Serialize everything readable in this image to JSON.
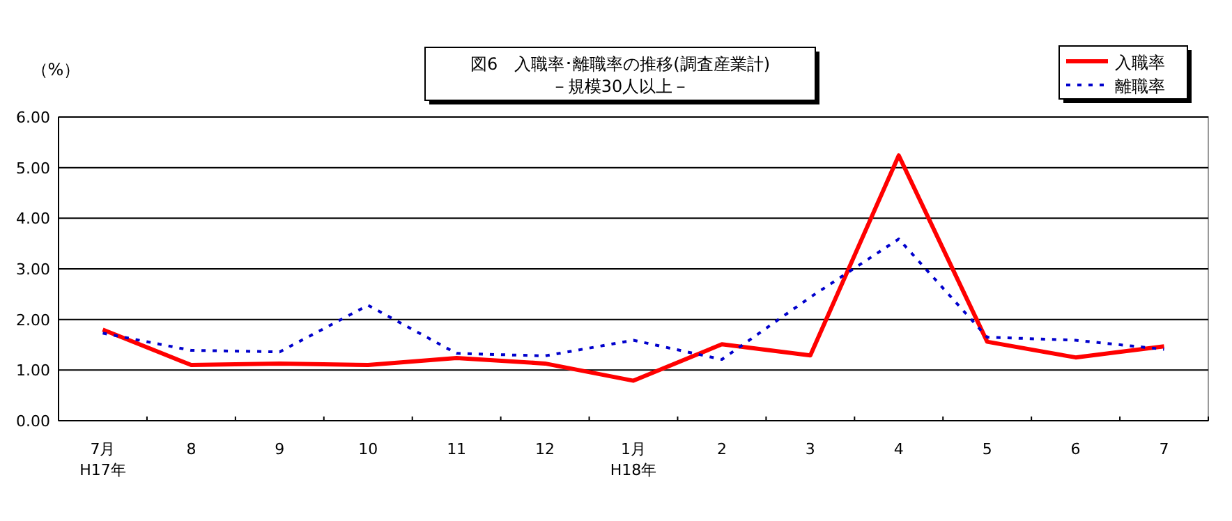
{
  "chart_data": {
    "type": "line",
    "title": "図6　入職率･離職率の推移(調査産業計)",
    "subtitle": "－規模30人以上－",
    "ylabel": "（%）",
    "categories": [
      "7月\nH17年",
      "8",
      "9",
      "10",
      "11",
      "12",
      "1月\nH18年",
      "2",
      "3",
      "4",
      "5",
      "6",
      "7"
    ],
    "series": [
      {
        "name": "入職率",
        "color": "#ff0000",
        "line_style": "solid",
        "values": [
          1.8,
          1.1,
          1.13,
          1.1,
          1.24,
          1.13,
          0.79,
          1.51,
          1.29,
          5.24,
          1.56,
          1.25,
          1.47
        ]
      },
      {
        "name": "離職率",
        "color": "#0000cc",
        "line_style": "dotted",
        "values": [
          1.73,
          1.39,
          1.36,
          2.28,
          1.33,
          1.28,
          1.59,
          1.21,
          2.44,
          3.59,
          1.65,
          1.59,
          1.41
        ]
      }
    ],
    "ylim": [
      0,
      6
    ],
    "yticks": [
      {
        "value": 0,
        "label": "0.00"
      },
      {
        "value": 1,
        "label": "1.00"
      },
      {
        "value": 2,
        "label": "2.00"
      },
      {
        "value": 3,
        "label": "3.00"
      },
      {
        "value": 4,
        "label": "4.00"
      },
      {
        "value": 5,
        "label": "5.00"
      },
      {
        "value": 6,
        "label": "6.00"
      }
    ],
    "grid": "y",
    "legend": "top right",
    "marker": "none"
  }
}
